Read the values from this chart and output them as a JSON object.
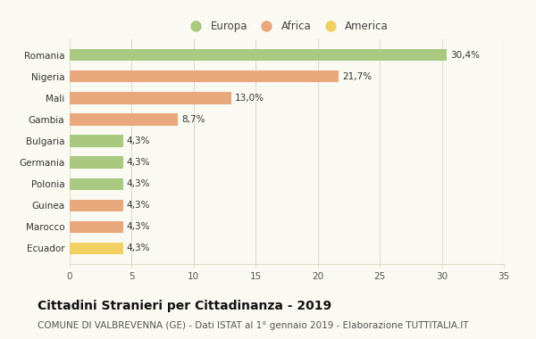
{
  "categories": [
    "Romania",
    "Nigeria",
    "Mali",
    "Gambia",
    "Bulgaria",
    "Germania",
    "Polonia",
    "Guinea",
    "Marocco",
    "Ecuador"
  ],
  "values": [
    30.4,
    21.7,
    13.0,
    8.7,
    4.3,
    4.3,
    4.3,
    4.3,
    4.3,
    4.3
  ],
  "labels": [
    "30,4%",
    "21,7%",
    "13,0%",
    "8,7%",
    "4,3%",
    "4,3%",
    "4,3%",
    "4,3%",
    "4,3%",
    "4,3%"
  ],
  "continent": [
    "Europa",
    "Africa",
    "Africa",
    "Africa",
    "Europa",
    "Europa",
    "Europa",
    "Africa",
    "Africa",
    "America"
  ],
  "colors": {
    "Europa": "#a8c97f",
    "Africa": "#e8a87c",
    "America": "#f0d060"
  },
  "legend_items": [
    "Europa",
    "Africa",
    "America"
  ],
  "xlim": [
    0,
    35
  ],
  "xticks": [
    0,
    5,
    10,
    15,
    20,
    25,
    30,
    35
  ],
  "title": "Cittadini Stranieri per Cittadinanza - 2019",
  "subtitle": "COMUNE DI VALBREVENNA (GE) - Dati ISTAT al 1° gennaio 2019 - Elaborazione TUTTITALIA.IT",
  "background_color": "#fafaf2",
  "grid_color": "#ddddcc",
  "bar_height": 0.55,
  "title_fontsize": 10,
  "subtitle_fontsize": 7.5,
  "label_fontsize": 7.5,
  "tick_fontsize": 7.5,
  "legend_fontsize": 8.5
}
